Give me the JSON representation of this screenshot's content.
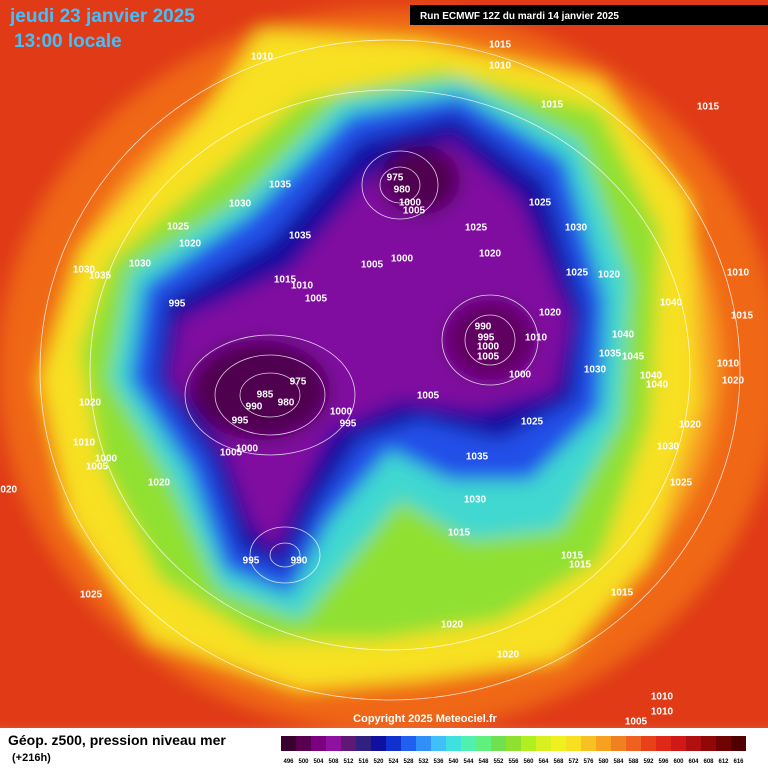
{
  "header": {
    "date": "jeudi 23 janvier 2025",
    "time": "13:00 locale",
    "run": "Run ECMWF 12Z du mardi 14 janvier 2025"
  },
  "copyright": "Copyright 2025 Meteociel.fr",
  "footer": {
    "title": "Géop. z500, pression niveau mer",
    "lead": "(+216h)"
  },
  "legend": {
    "ticks": [
      496,
      500,
      504,
      508,
      512,
      516,
      520,
      524,
      528,
      532,
      536,
      540,
      544,
      548,
      552,
      556,
      560,
      564,
      568,
      572,
      576,
      580,
      584,
      588,
      592,
      596,
      600,
      604,
      608,
      612,
      616
    ],
    "colors": [
      "#3a0030",
      "#5a0050",
      "#7a0080",
      "#9010a0",
      "#601878",
      "#302080",
      "#1010a0",
      "#1030d0",
      "#2060f0",
      "#3090f8",
      "#40c0f8",
      "#40e0e0",
      "#50f0b0",
      "#60f080",
      "#70e050",
      "#90e030",
      "#b0f020",
      "#d8f020",
      "#f0f020",
      "#f8e020",
      "#f8c020",
      "#f8a020",
      "#f08020",
      "#f06020",
      "#e84018",
      "#e02818",
      "#d01818",
      "#b01010",
      "#900808",
      "#700404",
      "#500000"
    ]
  },
  "isobar_labels": [
    "1010",
    "1015",
    "1010",
    "1015",
    "1015",
    "975",
    "980",
    "1000",
    "1005",
    "1035",
    "1030",
    "1025",
    "1025",
    "1020",
    "1035",
    "1025",
    "1030",
    "1020",
    "1005",
    "1000",
    "1030",
    "1035",
    "1030",
    "1025",
    "1020",
    "1015",
    "1010",
    "1005",
    "995",
    "1040",
    "1020",
    "990",
    "995",
    "1000",
    "1005",
    "1010",
    "1040",
    "1035",
    "1045",
    "1030",
    "1000",
    "975",
    "985",
    "990",
    "980",
    "1040",
    "1040",
    "1005",
    "1000",
    "995",
    "995",
    "1025",
    "1020",
    "1010",
    "1000",
    "1005",
    "1005",
    "1000",
    "1035",
    "1030",
    "1020",
    "1010",
    "1020",
    "1015",
    "1010",
    "1020",
    "1020",
    "1025",
    "1030",
    "1015",
    "995",
    "990",
    "1015",
    "1015",
    "1025",
    "1015",
    "1020",
    "1020",
    "1010",
    "1010",
    "1005"
  ]
}
